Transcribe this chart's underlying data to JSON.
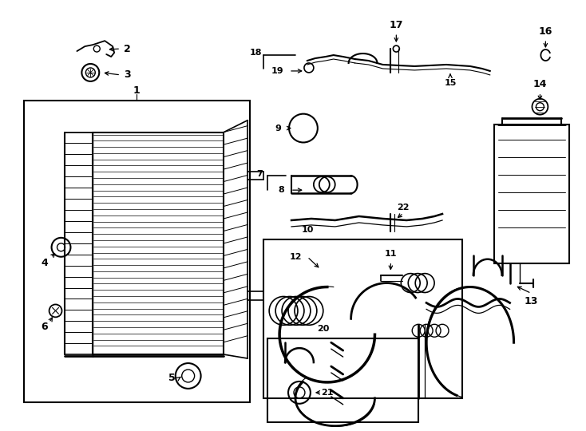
{
  "bg": "#ffffff",
  "lc": "#000000",
  "fig_w": 7.34,
  "fig_h": 5.4,
  "dpi": 100
}
